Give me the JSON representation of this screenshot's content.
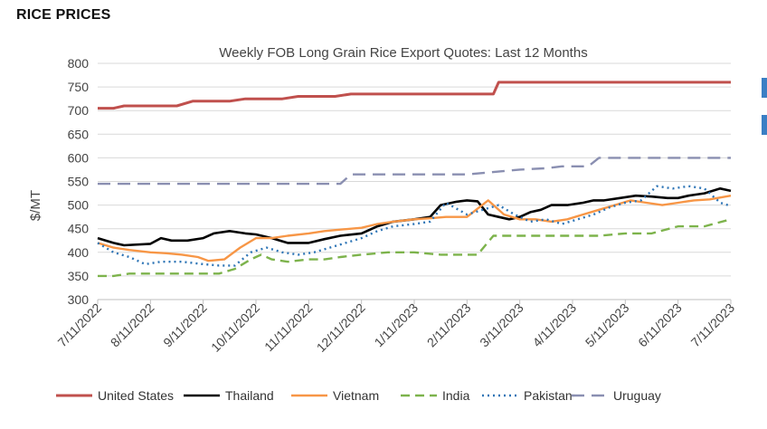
{
  "header": {
    "title": "RICE PRICES"
  },
  "chart_data": {
    "type": "line",
    "title": "Weekly FOB Long Grain Rice Export Quotes: Last 12 Months",
    "ylabel": "$/MT",
    "xlabel": "",
    "ylim": [
      300,
      800
    ],
    "yticks": [
      300,
      350,
      400,
      450,
      500,
      550,
      600,
      650,
      700,
      750,
      800
    ],
    "categories": [
      "7/11/2022",
      "8/11/2022",
      "9/11/2022",
      "10/11/2022",
      "11/11/2022",
      "12/11/2022",
      "1/11/2023",
      "2/11/2023",
      "3/11/2023",
      "4/11/2023",
      "5/11/2023",
      "6/11/2023",
      "7/11/2023"
    ],
    "grid": true,
    "legend": "bottom",
    "series": [
      {
        "name": "United States",
        "color": "#c0504d",
        "dash": "solid",
        "x": [
          0,
          0.3,
          0.5,
          1.5,
          1.8,
          2.5,
          2.8,
          3.5,
          3.8,
          4.5,
          4.8,
          5.5,
          5.8,
          7.5,
          7.6,
          12
        ],
        "values": [
          705,
          705,
          710,
          710,
          720,
          720,
          725,
          725,
          730,
          730,
          735,
          735,
          735,
          735,
          760,
          760
        ]
      },
      {
        "name": "Thailand",
        "color": "#000000",
        "dash": "solid",
        "x": [
          0,
          0.3,
          0.5,
          1,
          1.2,
          1.4,
          1.7,
          2,
          2.2,
          2.5,
          2.8,
          3,
          3.3,
          3.6,
          4,
          4.3,
          4.6,
          5,
          5.3,
          5.6,
          6,
          6.3,
          6.5,
          6.8,
          7,
          7.2,
          7.4,
          7.6,
          7.8,
          8,
          8.2,
          8.4,
          8.6,
          8.9,
          9.2,
          9.4,
          9.6,
          9.9,
          10.2,
          10.5,
          10.8,
          11,
          11.2,
          11.5,
          11.8,
          12
        ],
        "values": [
          430,
          420,
          415,
          418,
          430,
          425,
          425,
          430,
          440,
          445,
          440,
          438,
          430,
          420,
          420,
          428,
          435,
          440,
          455,
          465,
          470,
          475,
          500,
          507,
          510,
          508,
          480,
          475,
          470,
          475,
          485,
          490,
          500,
          500,
          505,
          510,
          510,
          515,
          520,
          518,
          515,
          515,
          520,
          525,
          535,
          530
        ]
      },
      {
        "name": "Vietnam",
        "color": "#f79646",
        "dash": "solid",
        "x": [
          0,
          0.3,
          0.6,
          1,
          1.3,
          1.6,
          1.9,
          2.1,
          2.4,
          2.7,
          3,
          3.3,
          3.6,
          4,
          4.3,
          4.6,
          5,
          5.3,
          5.6,
          6,
          6.3,
          6.6,
          7,
          7.4,
          7.7,
          8,
          8.3,
          8.6,
          8.9,
          9.2,
          9.5,
          9.8,
          10.1,
          10.4,
          10.7,
          11,
          11.3,
          11.6,
          12
        ],
        "values": [
          420,
          410,
          405,
          400,
          398,
          395,
          390,
          382,
          385,
          410,
          430,
          430,
          435,
          440,
          445,
          448,
          452,
          460,
          465,
          470,
          472,
          475,
          475,
          510,
          480,
          470,
          470,
          465,
          470,
          480,
          490,
          500,
          510,
          505,
          500,
          505,
          510,
          512,
          520
        ]
      },
      {
        "name": "India",
        "color": "#7db34c",
        "dash": "10 6",
        "x": [
          0,
          0.3,
          0.6,
          1,
          1.5,
          2,
          2.3,
          2.6,
          2.9,
          3.1,
          3.3,
          3.6,
          4,
          4.3,
          4.6,
          5,
          5.5,
          6,
          6.5,
          7,
          7.2,
          7.5,
          8,
          8.5,
          9,
          9.5,
          10,
          10.5,
          11,
          11.5,
          12
        ],
        "values": [
          350,
          350,
          355,
          355,
          355,
          355,
          355,
          365,
          385,
          395,
          385,
          380,
          385,
          385,
          390,
          395,
          400,
          400,
          395,
          395,
          395,
          435,
          435,
          435,
          435,
          435,
          440,
          440,
          455,
          455,
          470
        ]
      },
      {
        "name": "Pakistan",
        "color": "#2e75b6",
        "dash": "2 4",
        "x": [
          0,
          0.3,
          0.6,
          0.9,
          1.2,
          1.6,
          2,
          2.3,
          2.6,
          2.9,
          3.2,
          3.5,
          3.8,
          4.1,
          4.4,
          4.7,
          5,
          5.3,
          5.6,
          6,
          6.3,
          6.6,
          7,
          7.3,
          7.6,
          7.9,
          8.2,
          8.5,
          8.8,
          9.1,
          9.4,
          9.7,
          10,
          10.3,
          10.6,
          10.9,
          11.2,
          11.5,
          11.8,
          12
        ],
        "values": [
          420,
          400,
          390,
          375,
          380,
          380,
          375,
          372,
          372,
          400,
          410,
          400,
          395,
          400,
          410,
          420,
          430,
          445,
          455,
          460,
          465,
          505,
          480,
          490,
          500,
          480,
          465,
          470,
          460,
          470,
          480,
          495,
          505,
          510,
          540,
          535,
          540,
          535,
          505,
          498
        ]
      },
      {
        "name": "Uruguay",
        "color": "#8a8fb1",
        "dash": "14 8",
        "x": [
          0,
          1,
          2,
          3,
          4,
          4.6,
          4.8,
          5.5,
          6,
          7,
          7.5,
          8,
          8.5,
          8.8,
          9.3,
          9.5,
          10,
          11,
          12
        ],
        "values": [
          545,
          545,
          545,
          545,
          545,
          545,
          565,
          565,
          565,
          565,
          570,
          575,
          578,
          582,
          582,
          600,
          600,
          600,
          600
        ]
      }
    ]
  }
}
